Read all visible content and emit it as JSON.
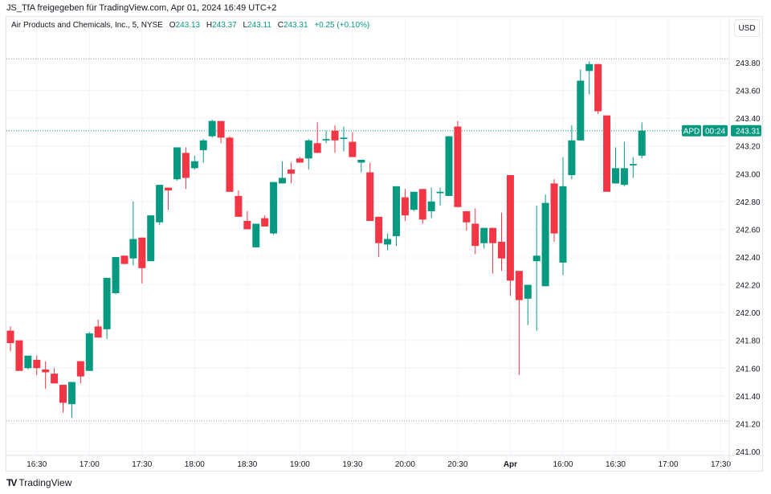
{
  "header": {
    "shared_by": "JS_TfA freigegeben für TradingView.com, Apr 01, 2024 16:49 UTC+2"
  },
  "legend": {
    "symbol": "Air Products and Chemicals, Inc., 5, NYSE",
    "open_label": "O",
    "open": "243.13",
    "high_label": "H",
    "high": "243.37",
    "low_label": "L",
    "low": "243.11",
    "close_label": "C",
    "close": "243.31",
    "change": "+0.25 (+0.10%)"
  },
  "currency_button": "USD",
  "price_tag": {
    "ticker": "APD",
    "price": "243.31",
    "countdown": "00:24"
  },
  "logo_text": "TradingView",
  "colors": {
    "up": "#089981",
    "down": "#f23645",
    "grid": "#f0f3fa",
    "text": "#131722"
  },
  "chart_data": {
    "type": "candlestick",
    "title": "Air Products and Chemicals, Inc., 5, NYSE",
    "ylim": [
      241.0,
      243.8
    ],
    "y_ticks": [
      "243.80",
      "243.60",
      "243.40",
      "243.20",
      "243.00",
      "242.80",
      "242.60",
      "242.40",
      "242.20",
      "242.00",
      "241.80",
      "241.60",
      "241.40",
      "241.20",
      "241.00"
    ],
    "x_ticks": [
      {
        "label": "16:30",
        "bar": 3
      },
      {
        "label": "17:00",
        "bar": 9
      },
      {
        "label": "17:30",
        "bar": 15
      },
      {
        "label": "18:00",
        "bar": 21
      },
      {
        "label": "18:30",
        "bar": 27
      },
      {
        "label": "19:00",
        "bar": 33
      },
      {
        "label": "19:30",
        "bar": 39
      },
      {
        "label": "20:00",
        "bar": 45
      },
      {
        "label": "20:30",
        "bar": 51
      },
      {
        "label": "Apr",
        "bar": 57
      },
      {
        "label": "16:00",
        "bar": 63
      },
      {
        "label": "16:30",
        "bar": 69
      },
      {
        "label": "17:00",
        "bar": 75
      },
      {
        "label": "17:30",
        "bar": 81
      }
    ],
    "reference_lines": {
      "session_high": 243.81,
      "session_low": 241.22,
      "last_price": 243.31
    },
    "ohlc": [
      [
        241.87,
        241.9,
        241.72,
        241.78
      ],
      [
        241.8,
        241.8,
        241.58,
        241.58
      ],
      [
        241.6,
        241.69,
        241.59,
        241.69
      ],
      [
        241.66,
        241.69,
        241.55,
        241.6
      ],
      [
        241.59,
        241.65,
        241.45,
        241.57
      ],
      [
        241.56,
        241.6,
        241.49,
        241.49
      ],
      [
        241.48,
        241.48,
        241.28,
        241.35
      ],
      [
        241.34,
        241.5,
        241.24,
        241.5
      ],
      [
        241.65,
        241.65,
        241.49,
        241.54
      ],
      [
        241.58,
        241.86,
        241.58,
        241.85
      ],
      [
        241.9,
        241.95,
        241.82,
        241.82
      ],
      [
        241.88,
        242.25,
        241.81,
        242.25
      ],
      [
        242.14,
        242.4,
        242.13,
        242.4
      ],
      [
        242.41,
        242.41,
        242.35,
        242.35
      ],
      [
        242.39,
        242.8,
        242.34,
        242.53
      ],
      [
        242.54,
        242.54,
        242.21,
        242.32
      ],
      [
        242.37,
        242.7,
        242.37,
        242.7
      ],
      [
        242.65,
        242.92,
        242.63,
        242.92
      ],
      [
        242.9,
        242.9,
        242.74,
        242.88
      ],
      [
        242.96,
        243.19,
        242.95,
        243.19
      ],
      [
        243.15,
        243.19,
        242.89,
        242.97
      ],
      [
        243.04,
        243.13,
        243.03,
        243.09
      ],
      [
        243.17,
        243.25,
        243.08,
        243.24
      ],
      [
        243.27,
        243.39,
        243.26,
        243.38
      ],
      [
        243.38,
        243.38,
        243.22,
        243.26
      ],
      [
        243.26,
        243.27,
        242.87,
        242.87
      ],
      [
        242.84,
        242.88,
        242.69,
        242.69
      ],
      [
        242.66,
        242.73,
        242.6,
        242.6
      ],
      [
        242.47,
        242.64,
        242.47,
        242.64
      ],
      [
        242.68,
        242.7,
        242.62,
        242.62
      ],
      [
        242.57,
        242.94,
        242.56,
        242.94
      ],
      [
        242.93,
        243.09,
        242.93,
        242.97
      ],
      [
        243.03,
        243.08,
        242.93,
        243.0
      ],
      [
        243.11,
        243.12,
        243.08,
        243.08
      ],
      [
        243.11,
        243.25,
        243.03,
        243.24
      ],
      [
        243.22,
        243.37,
        243.15,
        243.15
      ],
      [
        243.24,
        243.31,
        243.22,
        243.25
      ],
      [
        243.31,
        243.35,
        243.15,
        243.24
      ],
      [
        243.25,
        243.34,
        243.16,
        243.26
      ],
      [
        243.23,
        243.3,
        243.12,
        243.12
      ],
      [
        243.08,
        243.1,
        243.01,
        243.1
      ],
      [
        243.01,
        243.08,
        242.66,
        242.66
      ],
      [
        242.69,
        242.69,
        242.4,
        242.5
      ],
      [
        242.49,
        242.57,
        242.45,
        242.53
      ],
      [
        242.55,
        242.91,
        242.48,
        242.91
      ],
      [
        242.83,
        242.89,
        242.66,
        242.7
      ],
      [
        242.74,
        242.87,
        242.73,
        242.87
      ],
      [
        242.89,
        242.89,
        242.64,
        242.67
      ],
      [
        242.73,
        242.9,
        242.68,
        242.8
      ],
      [
        242.86,
        242.9,
        242.77,
        242.87
      ],
      [
        242.84,
        243.27,
        242.84,
        243.27
      ],
      [
        243.34,
        243.38,
        242.76,
        242.76
      ],
      [
        242.73,
        242.73,
        242.59,
        242.65
      ],
      [
        242.64,
        242.75,
        242.42,
        242.48
      ],
      [
        242.5,
        242.61,
        242.46,
        242.61
      ],
      [
        242.61,
        242.61,
        242.28,
        242.5
      ],
      [
        242.51,
        242.72,
        242.3,
        242.39
      ],
      [
        242.99,
        242.99,
        242.12,
        242.23
      ],
      [
        242.3,
        242.3,
        241.55,
        242.09
      ],
      [
        242.1,
        242.2,
        241.91,
        242.2
      ],
      [
        242.37,
        242.77,
        241.87,
        242.41
      ],
      [
        242.19,
        242.85,
        242.19,
        242.79
      ],
      [
        242.93,
        242.96,
        242.51,
        242.57
      ],
      [
        242.36,
        243.12,
        242.27,
        242.91
      ],
      [
        242.99,
        243.35,
        242.96,
        243.24
      ],
      [
        243.24,
        243.75,
        243.24,
        243.67
      ],
      [
        243.74,
        243.81,
        243.57,
        243.79
      ],
      [
        243.79,
        243.79,
        243.43,
        243.45
      ],
      [
        243.42,
        243.42,
        242.87,
        242.87
      ],
      [
        242.93,
        243.19,
        242.93,
        243.04
      ],
      [
        242.92,
        243.23,
        242.91,
        243.04
      ],
      [
        243.06,
        243.12,
        242.97,
        243.07
      ],
      [
        243.13,
        243.37,
        243.11,
        243.31
      ]
    ]
  }
}
